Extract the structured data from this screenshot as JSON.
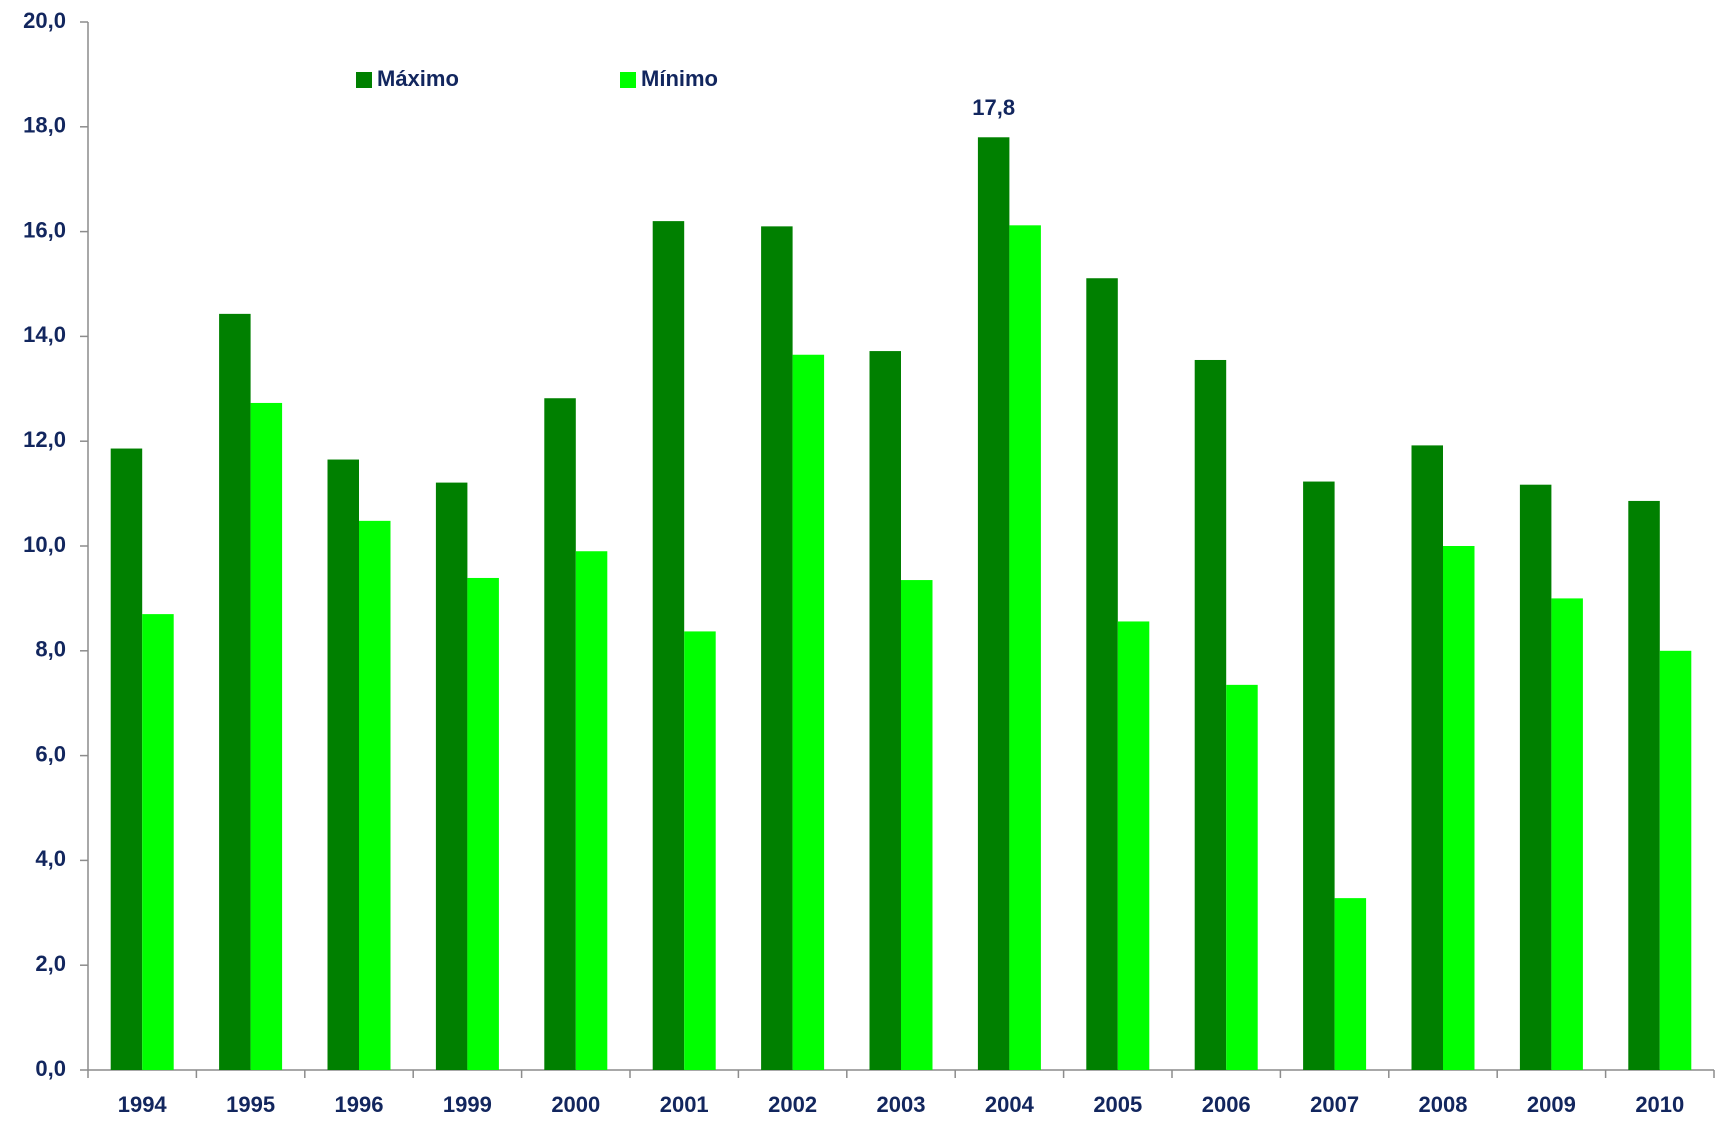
{
  "chart_data": {
    "type": "bar",
    "categories": [
      "1994",
      "1995",
      "1996",
      "1999",
      "2000",
      "2001",
      "2002",
      "2003",
      "2004",
      "2005",
      "2006",
      "2007",
      "2008",
      "2009",
      "2010"
    ],
    "series": [
      {
        "name": "Máximo",
        "color": "#008000",
        "values": [
          11.86,
          14.43,
          11.65,
          11.21,
          12.82,
          16.2,
          16.1,
          13.72,
          17.8,
          15.11,
          13.55,
          11.23,
          11.92,
          11.17,
          10.86
        ],
        "value_labels": [
          null,
          null,
          null,
          null,
          null,
          null,
          null,
          null,
          "17,8",
          null,
          null,
          null,
          null,
          null,
          null
        ]
      },
      {
        "name": "Mínimo",
        "color": "#00ff00",
        "values": [
          8.7,
          12.73,
          10.48,
          9.39,
          9.9,
          8.37,
          13.65,
          9.35,
          16.12,
          8.56,
          7.35,
          3.28,
          10.0,
          9.0,
          8.0
        ]
      }
    ],
    "ylim": [
      0,
      20
    ],
    "yticks": [
      {
        "value": 0,
        "label": "0,0"
      },
      {
        "value": 2,
        "label": "2,0"
      },
      {
        "value": 4,
        "label": "4,0"
      },
      {
        "value": 6,
        "label": "6,0"
      },
      {
        "value": 8,
        "label": "8,0"
      },
      {
        "value": 10,
        "label": "10,0"
      },
      {
        "value": 12,
        "label": "12,0"
      },
      {
        "value": 14,
        "label": "14,0"
      },
      {
        "value": 16,
        "label": "16,0"
      },
      {
        "value": 18,
        "label": "18,0"
      },
      {
        "value": 20,
        "label": "20,0"
      }
    ],
    "grid": false,
    "legend": "top"
  }
}
